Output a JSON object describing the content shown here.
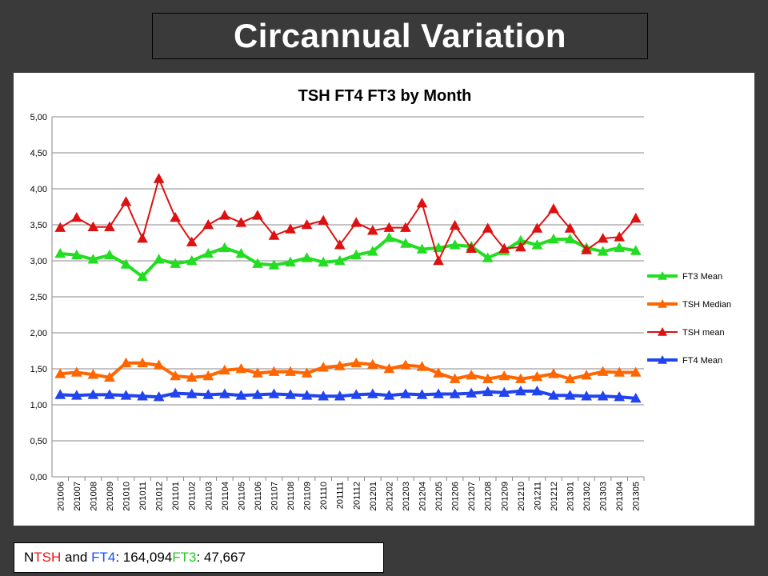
{
  "slide": {
    "title": "Circannual Variation"
  },
  "footer": {
    "n_label": "N",
    "tsh": "TSH",
    "and": " and ",
    "ft4": "FT4",
    "count1": ": 164,094",
    "ft3": "FT3",
    "count2": ": 47,667"
  },
  "chart_data": {
    "type": "line",
    "title": "TSH FT4 FT3 by Month",
    "xlabel": "",
    "ylabel": "",
    "ylim": [
      0,
      5
    ],
    "yticks": [
      "0,00",
      "0,50",
      "1,00",
      "1,50",
      "2,00",
      "2,50",
      "3,00",
      "3,50",
      "4,00",
      "4,50",
      "5,00"
    ],
    "grid": true,
    "legend_position": "right",
    "categories": [
      "201006",
      "201007",
      "201008",
      "201009",
      "201010",
      "201011",
      "201012",
      "201101",
      "201102",
      "201103",
      "201104",
      "201105",
      "201106",
      "201107",
      "201108",
      "201109",
      "201110",
      "201111",
      "201112",
      "201201",
      "201202",
      "201203",
      "201204",
      "201205",
      "201206",
      "201207",
      "201208",
      "201209",
      "201210",
      "201211",
      "201212",
      "201301",
      "201302",
      "201303",
      "201304",
      "201305"
    ],
    "series": [
      {
        "name": "FT3 Mean",
        "color": "#22dd22",
        "line_width": 4,
        "values": [
          3.1,
          3.08,
          3.02,
          3.08,
          2.95,
          2.78,
          3.02,
          2.96,
          3.0,
          3.1,
          3.18,
          3.1,
          2.96,
          2.94,
          2.98,
          3.04,
          2.98,
          3.0,
          3.08,
          3.13,
          3.32,
          3.24,
          3.16,
          3.18,
          3.22,
          3.2,
          3.04,
          3.14,
          3.28,
          3.22,
          3.3,
          3.3,
          3.18,
          3.13,
          3.18,
          3.14
        ]
      },
      {
        "name": "TSH Median",
        "color": "#ff6600",
        "line_width": 4,
        "values": [
          1.43,
          1.45,
          1.42,
          1.38,
          1.58,
          1.58,
          1.55,
          1.4,
          1.38,
          1.4,
          1.48,
          1.5,
          1.44,
          1.46,
          1.46,
          1.44,
          1.52,
          1.54,
          1.58,
          1.56,
          1.5,
          1.55,
          1.53,
          1.44,
          1.36,
          1.41,
          1.36,
          1.4,
          1.36,
          1.39,
          1.43,
          1.36,
          1.41,
          1.46,
          1.45,
          1.45
        ]
      },
      {
        "name": "TSH mean",
        "color": "#dd1111",
        "line_width": 2,
        "values": [
          3.46,
          3.6,
          3.47,
          3.47,
          3.82,
          3.31,
          4.14,
          3.6,
          3.26,
          3.5,
          3.63,
          3.53,
          3.63,
          3.35,
          3.44,
          3.5,
          3.56,
          3.22,
          3.53,
          3.42,
          3.46,
          3.46,
          3.8,
          3.0,
          3.49,
          3.17,
          3.45,
          3.17,
          3.19,
          3.45,
          3.72,
          3.45,
          3.15,
          3.31,
          3.33,
          3.59
        ]
      },
      {
        "name": "FT4 Mean",
        "color": "#2244ee",
        "line_width": 4,
        "values": [
          1.14,
          1.13,
          1.14,
          1.14,
          1.13,
          1.12,
          1.11,
          1.16,
          1.15,
          1.14,
          1.15,
          1.13,
          1.14,
          1.15,
          1.14,
          1.13,
          1.12,
          1.12,
          1.14,
          1.15,
          1.13,
          1.15,
          1.14,
          1.15,
          1.15,
          1.16,
          1.18,
          1.17,
          1.19,
          1.19,
          1.13,
          1.13,
          1.12,
          1.12,
          1.11,
          1.09
        ]
      }
    ]
  }
}
